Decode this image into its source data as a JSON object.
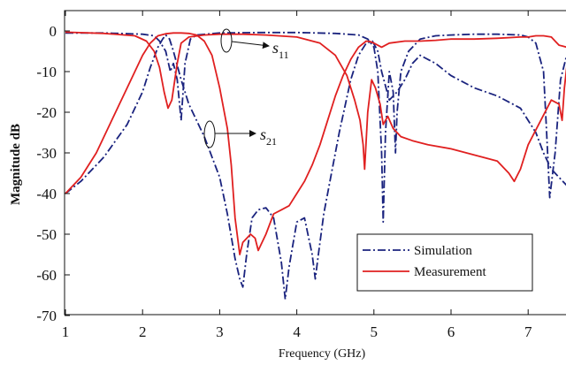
{
  "chart_data": {
    "type": "line",
    "xlabel": "Frequency (GHz)",
    "ylabel": "Magnitude dB",
    "xlim": [
      1,
      7.5
    ],
    "ylim": [
      -70,
      3
    ],
    "xticks": [
      1,
      2,
      3,
      4,
      5,
      6,
      7
    ],
    "yticks": [
      0,
      -10,
      -20,
      -30,
      -40,
      -50,
      -60,
      -70
    ],
    "grid": false,
    "legend": {
      "placement": "lower-right",
      "entries": [
        "Simulation",
        "Measurement"
      ]
    },
    "annotations": [
      {
        "label": "s",
        "subscript": "11",
        "target_x": 3.1,
        "target_y": -2.5
      },
      {
        "label": "s",
        "subscript": "21",
        "target_x": 2.9,
        "target_y": -25
      }
    ],
    "colors": {
      "simulation": "#1a237e",
      "measurement": "#e02020"
    },
    "series": [
      {
        "name": "Simulation",
        "curve": "S11",
        "style": "dash-dot",
        "x": [
          1.0,
          1.5,
          2.0,
          2.15,
          2.22,
          2.3,
          2.36,
          2.4,
          2.45,
          2.5,
          2.55,
          2.62,
          2.7,
          3.0,
          3.5,
          4.0,
          4.5,
          4.8,
          4.92,
          5.0,
          5.05,
          5.1,
          5.12,
          5.15,
          5.2,
          5.25,
          5.28,
          5.3,
          5.35,
          5.45,
          5.6,
          5.8,
          6.0,
          6.3,
          6.6,
          6.9,
          7.0,
          7.1,
          7.2,
          7.24,
          7.28,
          7.35,
          7.42,
          7.5
        ],
        "y": [
          -0.5,
          -0.5,
          -0.8,
          -1.2,
          -2.5,
          -5,
          -10,
          -8,
          -12,
          -22,
          -8,
          -2,
          -1,
          -0.5,
          -0.4,
          -0.4,
          -0.6,
          -1,
          -2,
          -4,
          -10,
          -30,
          -47,
          -25,
          -10,
          -15,
          -30,
          -20,
          -10,
          -5,
          -2,
          -1.2,
          -1,
          -0.8,
          -0.8,
          -1,
          -1.5,
          -3,
          -10,
          -25,
          -41,
          -30,
          -12,
          -6
        ]
      },
      {
        "name": "Simulation",
        "curve": "S21",
        "style": "dash-dot",
        "x": [
          1.0,
          1.2,
          1.5,
          1.8,
          2.0,
          2.1,
          2.2,
          2.26,
          2.3,
          2.35,
          2.4,
          2.5,
          2.6,
          2.8,
          3.0,
          3.1,
          3.2,
          3.26,
          3.3,
          3.35,
          3.42,
          3.5,
          3.6,
          3.7,
          3.8,
          3.85,
          3.9,
          4.0,
          4.1,
          4.2,
          4.24,
          4.28,
          4.35,
          4.45,
          4.55,
          4.7,
          4.8,
          4.9,
          4.98,
          5.05,
          5.1,
          5.2,
          5.3,
          5.4,
          5.5,
          5.6,
          5.8,
          6.0,
          6.3,
          6.6,
          6.9,
          7.1,
          7.2,
          7.3,
          7.4,
          7.5
        ],
        "y": [
          -40,
          -37,
          -31,
          -23,
          -15,
          -9,
          -4,
          -2,
          -1,
          -2,
          -5,
          -12,
          -18,
          -26,
          -36,
          -45,
          -56,
          -61,
          -63,
          -55,
          -46,
          -44,
          -43.5,
          -46,
          -57,
          -66,
          -58,
          -47,
          -46,
          -55,
          -61,
          -55,
          -45,
          -35,
          -25,
          -12,
          -6,
          -3,
          -2.5,
          -5,
          -10,
          -17,
          -15,
          -12,
          -8,
          -6,
          -8,
          -11,
          -14,
          -16,
          -19,
          -25,
          -30,
          -34,
          -36,
          -38
        ]
      },
      {
        "name": "Measurement",
        "curve": "S11",
        "style": "solid",
        "x": [
          1.0,
          1.5,
          1.9,
          2.05,
          2.15,
          2.22,
          2.28,
          2.33,
          2.38,
          2.45,
          2.5,
          2.6,
          2.8,
          3.0,
          3.3,
          3.6,
          4.0,
          4.3,
          4.5,
          4.65,
          4.75,
          4.82,
          4.86,
          4.88,
          4.92,
          4.97,
          5.02,
          5.08,
          5.12,
          5.18,
          5.25,
          5.35,
          5.5,
          5.7,
          6.0,
          6.2,
          6.4,
          6.6,
          6.75,
          6.82,
          6.9,
          7.0,
          7.3,
          7.4,
          7.44,
          7.47,
          7.5
        ],
        "y": [
          -0.3,
          -0.6,
          -1.2,
          -2.5,
          -5,
          -9,
          -15,
          -19,
          -17,
          -8,
          -3,
          -1.5,
          -1,
          -0.8,
          -0.8,
          -1,
          -1.5,
          -3,
          -6,
          -11,
          -17,
          -22,
          -28,
          -34,
          -20,
          -12,
          -14,
          -18,
          -23,
          -21,
          -24,
          -26,
          -27,
          -28,
          -29,
          -30,
          -31,
          -32,
          -35,
          -37,
          -34,
          -28,
          -17,
          -18,
          -22,
          -14,
          -9
        ]
      },
      {
        "name": "Measurement",
        "curve": "S21",
        "style": "solid",
        "x": [
          1.0,
          1.2,
          1.4,
          1.6,
          1.8,
          1.9,
          2.0,
          2.1,
          2.2,
          2.3,
          2.4,
          2.5,
          2.6,
          2.7,
          2.8,
          2.9,
          3.0,
          3.1,
          3.15,
          3.2,
          3.26,
          3.3,
          3.4,
          3.46,
          3.5,
          3.6,
          3.7,
          3.8,
          3.9,
          4.0,
          4.1,
          4.2,
          4.3,
          4.4,
          4.5,
          4.6,
          4.7,
          4.8,
          4.9,
          4.95,
          5.0,
          5.1,
          5.2,
          5.4,
          5.6,
          5.8,
          6.0,
          6.3,
          6.6,
          6.9,
          7.0,
          7.1,
          7.2,
          7.3,
          7.35,
          7.4,
          7.5
        ],
        "y": [
          -40,
          -36,
          -30,
          -22,
          -14,
          -10,
          -6,
          -3,
          -1.2,
          -0.7,
          -0.5,
          -0.5,
          -0.6,
          -1,
          -2.5,
          -6,
          -14,
          -24,
          -33,
          -46,
          -55,
          -52,
          -50,
          -51,
          -54,
          -50,
          -45,
          -44,
          -43,
          -40,
          -37,
          -33,
          -28,
          -22,
          -16,
          -11,
          -7,
          -4,
          -2.5,
          -2.6,
          -3,
          -4,
          -3,
          -2.5,
          -2.5,
          -2.3,
          -2,
          -2,
          -1.8,
          -1.5,
          -1.5,
          -1.2,
          -1.2,
          -1.5,
          -2.5,
          -3.5,
          -4
        ]
      }
    ]
  }
}
